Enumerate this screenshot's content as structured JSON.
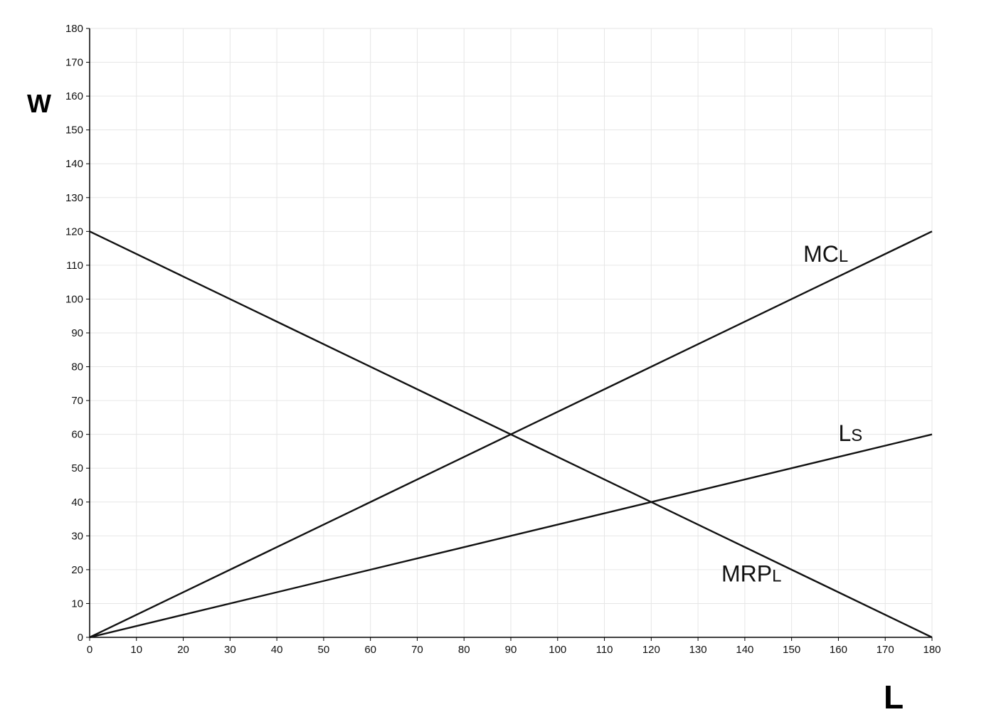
{
  "chart_data": {
    "type": "line",
    "xlabel": "L",
    "ylabel": "W",
    "xlim": [
      0,
      180
    ],
    "ylim": [
      0,
      180
    ],
    "xticks": [
      0,
      10,
      20,
      30,
      40,
      50,
      60,
      70,
      80,
      90,
      100,
      110,
      120,
      130,
      140,
      150,
      160,
      170,
      180
    ],
    "yticks": [
      0,
      10,
      20,
      30,
      40,
      50,
      60,
      70,
      80,
      90,
      100,
      110,
      120,
      130,
      140,
      150,
      160,
      170,
      180
    ],
    "grid": true,
    "series": [
      {
        "id": "mcl",
        "name": "MCL",
        "label_main": "MC",
        "label_sub": "L",
        "label_at": {
          "x": 152.5,
          "y": 111
        },
        "x": [
          0,
          180
        ],
        "y": [
          0,
          120
        ]
      },
      {
        "id": "ls",
        "name": "Ls",
        "label_main": "L",
        "label_sub": "S",
        "label_at": {
          "x": 160,
          "y": 58
        },
        "x": [
          0,
          180
        ],
        "y": [
          0,
          60
        ]
      },
      {
        "id": "mrpl",
        "name": "MRPL",
        "label_main": "MRP",
        "label_sub": "L",
        "label_at": {
          "x": 135,
          "y": 16.5
        },
        "x": [
          0,
          180
        ],
        "y": [
          120,
          0
        ]
      }
    ]
  },
  "colors": {
    "line": "#111111",
    "grid": "#e6e6e6",
    "axis": "#000000"
  }
}
